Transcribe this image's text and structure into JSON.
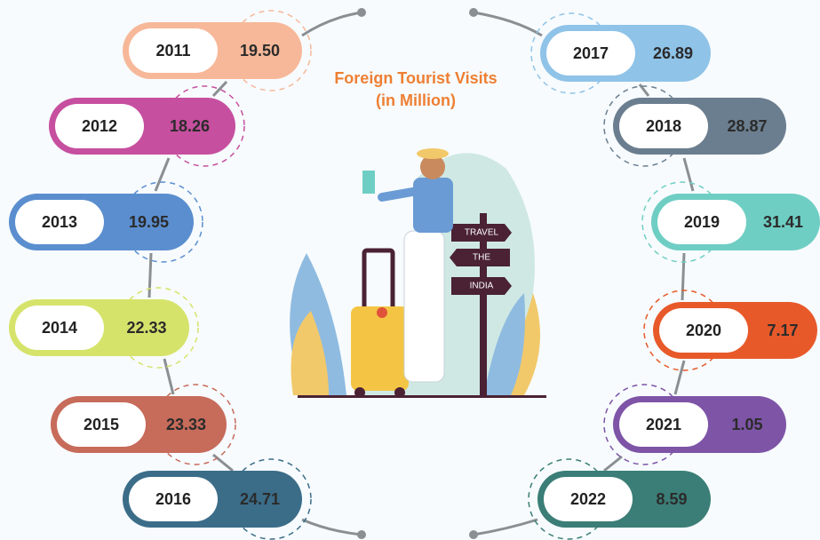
{
  "title": [
    "Foreign Tourist Visits",
    "(in Million)"
  ],
  "sign": [
    "TRAVEL",
    "THE",
    "INDIA"
  ],
  "items": [
    {
      "year": "2011",
      "value": "19.50",
      "color": "#f7b899"
    },
    {
      "year": "2012",
      "value": "18.26",
      "color": "#c64f9f"
    },
    {
      "year": "2013",
      "value": "19.95",
      "color": "#5b8ecf"
    },
    {
      "year": "2014",
      "value": "22.33",
      "color": "#d6e36b"
    },
    {
      "year": "2015",
      "value": "23.33",
      "color": "#c76b5b"
    },
    {
      "year": "2016",
      "value": "24.71",
      "color": "#3b6d89"
    },
    {
      "year": "2017",
      "value": "26.89",
      "color": "#8fc3e8"
    },
    {
      "year": "2018",
      "value": "28.87",
      "color": "#6b7e8f"
    },
    {
      "year": "2019",
      "value": "31.41",
      "color": "#6fcec4"
    },
    {
      "year": "2020",
      "value": "7.17",
      "color": "#e8592a"
    },
    {
      "year": "2021",
      "value": "1.05",
      "color": "#7e54a7"
    },
    {
      "year": "2022",
      "value": "8.59",
      "color": "#3b7e77"
    }
  ]
}
